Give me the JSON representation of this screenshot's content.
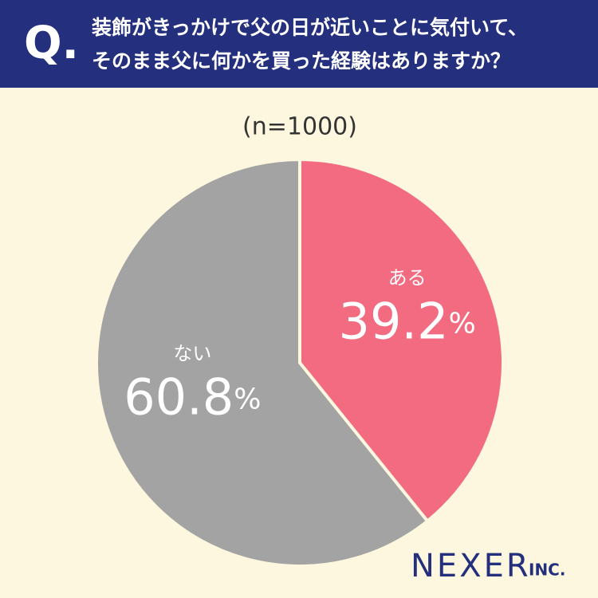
{
  "chart_data": {
    "type": "pie",
    "header": {
      "mark": "Q.",
      "lines": [
        "装飾がきっかけで父の日が近いことに気付いて、",
        "そのまま父に何かを買った経験はありますか？"
      ]
    },
    "subtitle": "(n=1000)",
    "categories": [
      "ある",
      "ない"
    ],
    "values": [
      39.2,
      60.8
    ],
    "value_labels": [
      "39.2%",
      "60.8%"
    ],
    "colors": [
      "#f36b81",
      "#a3a3a3"
    ],
    "logo": {
      "name": "NEXER",
      "suffix": "INC."
    }
  }
}
